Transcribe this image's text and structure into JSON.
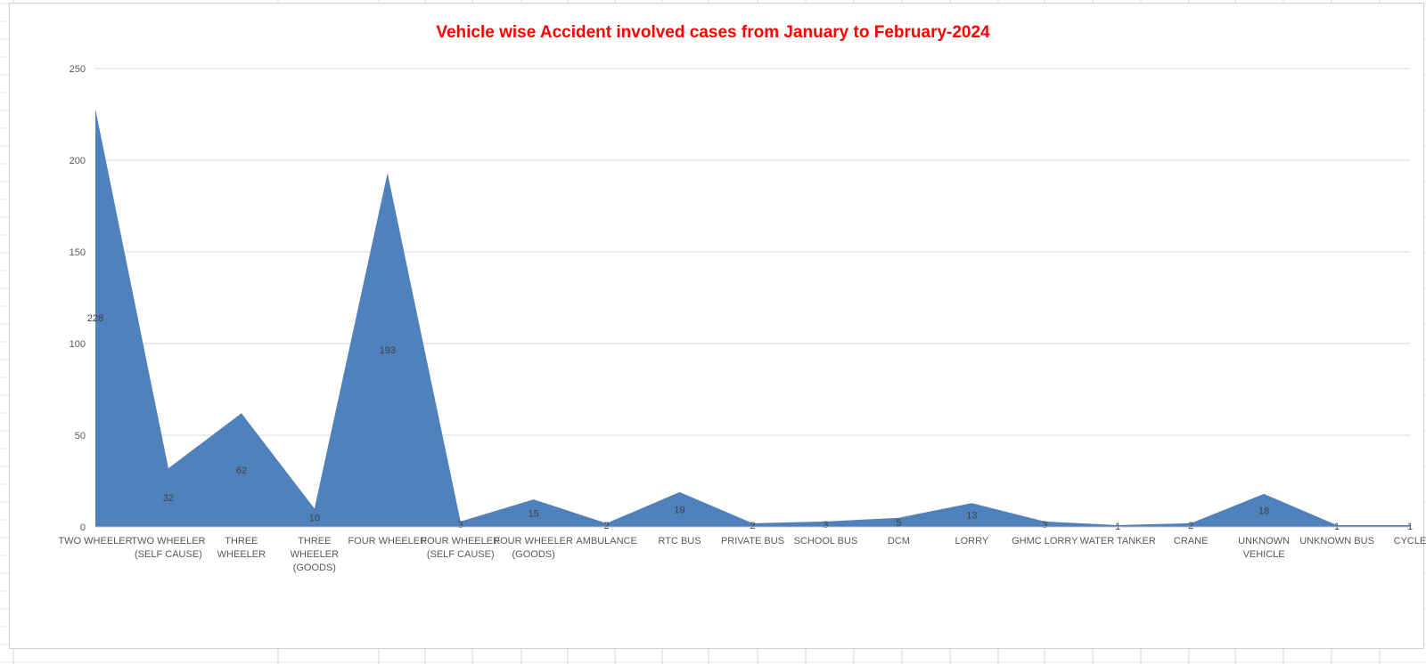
{
  "chart_data": {
    "type": "area",
    "title": "Vehicle wise Accident involved cases from January  to February-2024",
    "title_color": "#ff0000",
    "series_color": "#4f81bd",
    "categories": [
      "TWO WHEELER",
      "TWO WHEELER\n(SELF CAUSE)",
      "THREE\nWHEELER",
      "THREE\nWHEELER\n(GOODS)",
      "FOUR WHEELER",
      "FOUR WHEELER\n(SELF CAUSE)",
      "FOUR WHEELER\n(GOODS)",
      "AMBULANCE",
      "RTC BUS",
      "PRIVATE BUS",
      "SCHOOL BUS",
      "DCM",
      "LORRY",
      "GHMC LORRY",
      "WATER TANKER",
      "CRANE",
      "UNKNOWN\nVEHICLE",
      "UNKNOWN BUS",
      "CYCLE"
    ],
    "values": [
      228,
      32,
      62,
      10,
      193,
      3,
      15,
      2,
      19,
      2,
      3,
      5,
      13,
      3,
      1,
      2,
      18,
      1,
      1
    ],
    "ylim": [
      0,
      250
    ],
    "yticks": [
      0,
      50,
      100,
      150,
      200,
      250
    ],
    "grid": true,
    "legend": "none",
    "data_labels": true
  }
}
